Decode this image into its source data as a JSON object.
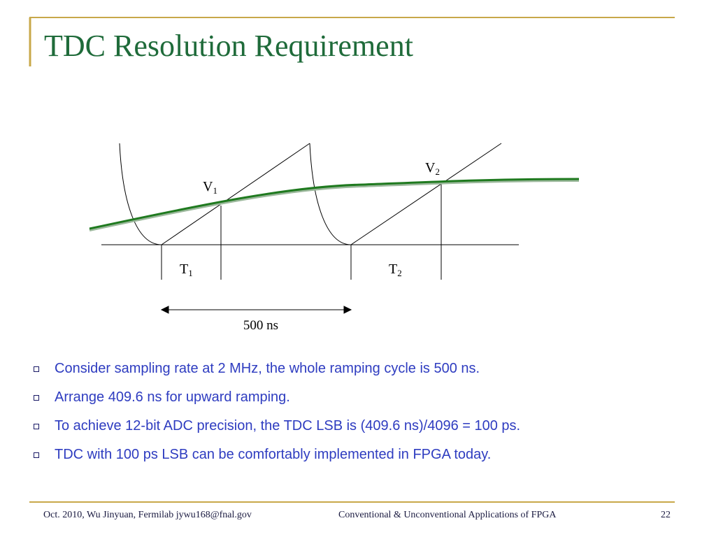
{
  "header": {
    "title": "TDC Resolution Requirement"
  },
  "diagram": {
    "labels": [
      {
        "base": "V",
        "sub": "1"
      },
      {
        "base": "V",
        "sub": "2"
      },
      {
        "base": "T",
        "sub": "1"
      },
      {
        "base": "T",
        "sub": "2"
      }
    ],
    "interval": "500 ns"
  },
  "bullets": [
    "Consider sampling rate at 2 MHz, the whole ramping cycle is 500 ns.",
    "Arrange 409.6 ns for upward ramping.",
    "To achieve 12-bit ADC precision, the TDC LSB is (409.6 ns)/4096 = 100 ps.",
    "TDC with 100 ps LSB can be comfortably implemented in FPGA today."
  ],
  "footer": {
    "left": "Oct. 2010, Wu Jinyuan, Fermilab jywu168@fnal.gov",
    "center": "Conventional & Unconventional Applications of  FPGA",
    "page": "22"
  }
}
